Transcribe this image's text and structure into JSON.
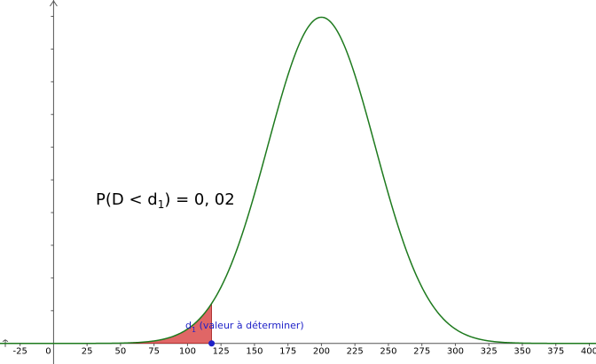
{
  "chart_data": {
    "type": "area",
    "title": "",
    "xlabel": "",
    "ylabel": "",
    "distribution": {
      "name": "normal",
      "mean": 200,
      "sd": 40
    },
    "x_ticks": [
      -25,
      0,
      25,
      50,
      75,
      100,
      125,
      150,
      175,
      200,
      225,
      250,
      275,
      300,
      325,
      350,
      375,
      400
    ],
    "x_tick_labels": [
      "-25",
      "0",
      "25",
      "50",
      "75",
      "100",
      "125",
      "150",
      "175",
      "200",
      "225",
      "250",
      "275",
      "300",
      "325",
      "350",
      "375",
      "400"
    ],
    "xlim": [
      -40,
      405
    ],
    "ylim": [
      -0.00063,
      0.0105
    ],
    "y_axis_ticks_unlabeled": true,
    "grid": false,
    "shaded_region": {
      "from": 0,
      "to": 118,
      "color": "#e06666"
    },
    "curve_color": "#1e7a1e",
    "point": {
      "x": 118,
      "y": 0,
      "color": "#1f22c8"
    },
    "annotations": {
      "probability": {
        "prefix": "P(D < d",
        "subscript": "1",
        "suffix": ") = 0, 02"
      },
      "point_label": {
        "main": "d",
        "subscript": "1",
        "suffix": " (valeur à déterminer)"
      }
    }
  }
}
